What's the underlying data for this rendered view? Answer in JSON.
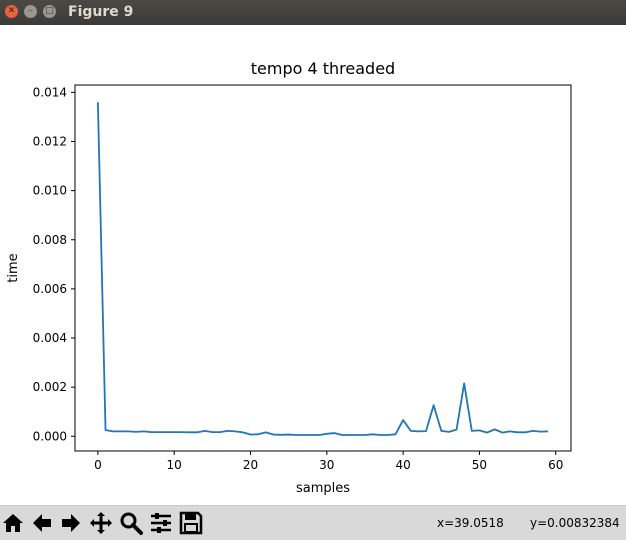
{
  "window": {
    "title": "Figure 9"
  },
  "toolbar": {
    "buttons": [
      {
        "name": "home-icon"
      },
      {
        "name": "back-arrow-icon"
      },
      {
        "name": "forward-arrow-icon"
      },
      {
        "name": "pan-icon"
      },
      {
        "name": "zoom-icon"
      },
      {
        "name": "subplots-config-icon"
      },
      {
        "name": "save-icon"
      }
    ],
    "coord_x": "x=39.0518",
    "coord_y": "y=0.00832384"
  },
  "chart_data": {
    "type": "line",
    "title": "tempo 4 threaded",
    "xlabel": "samples",
    "ylabel": "time",
    "xlim": [
      -3,
      62
    ],
    "ylim": [
      -0.0006,
      0.0143
    ],
    "xticks": [
      0,
      10,
      20,
      30,
      40,
      50,
      60
    ],
    "yticks": [
      0.0,
      0.002,
      0.004,
      0.006,
      0.008,
      0.01,
      0.012,
      0.014
    ],
    "ytick_labels": [
      "0.000",
      "0.002",
      "0.004",
      "0.006",
      "0.008",
      "0.010",
      "0.012",
      "0.014"
    ],
    "line_color": "#1f77b4",
    "series": [
      {
        "x": [
          0,
          1,
          2,
          3,
          4,
          5,
          6,
          7,
          8,
          9,
          10,
          11,
          12,
          13,
          14,
          15,
          16,
          17,
          18,
          19,
          20,
          21,
          22,
          23,
          24,
          25,
          26,
          27,
          28,
          29,
          30,
          31,
          32,
          33,
          34,
          35,
          36,
          37,
          38,
          39,
          40,
          41,
          42,
          43,
          44,
          45,
          46,
          47,
          48,
          49,
          50,
          51,
          52,
          53,
          54,
          55,
          56,
          57,
          58,
          59
        ],
        "values": [
          0.0136,
          0.00025,
          0.0002,
          0.0002,
          0.0002,
          0.00018,
          0.0002,
          0.00017,
          0.00017,
          0.00017,
          0.00017,
          0.00017,
          0.00016,
          0.00016,
          0.00022,
          0.00017,
          0.00017,
          0.00022,
          0.0002,
          0.00016,
          7e-05,
          8e-05,
          0.00016,
          7e-05,
          6e-05,
          7e-05,
          5e-05,
          5e-05,
          5e-05,
          5e-05,
          0.0001,
          0.00013,
          5e-05,
          5e-05,
          5e-05,
          5e-05,
          8e-05,
          5e-05,
          5e-05,
          8e-05,
          0.00066,
          0.00022,
          0.0002,
          0.00021,
          0.00127,
          0.00022,
          0.00018,
          0.00027,
          0.00215,
          0.00022,
          0.00024,
          0.00015,
          0.00028,
          0.00015,
          0.0002,
          0.00016,
          0.00016,
          0.00022,
          0.00019,
          0.0002
        ]
      }
    ]
  }
}
